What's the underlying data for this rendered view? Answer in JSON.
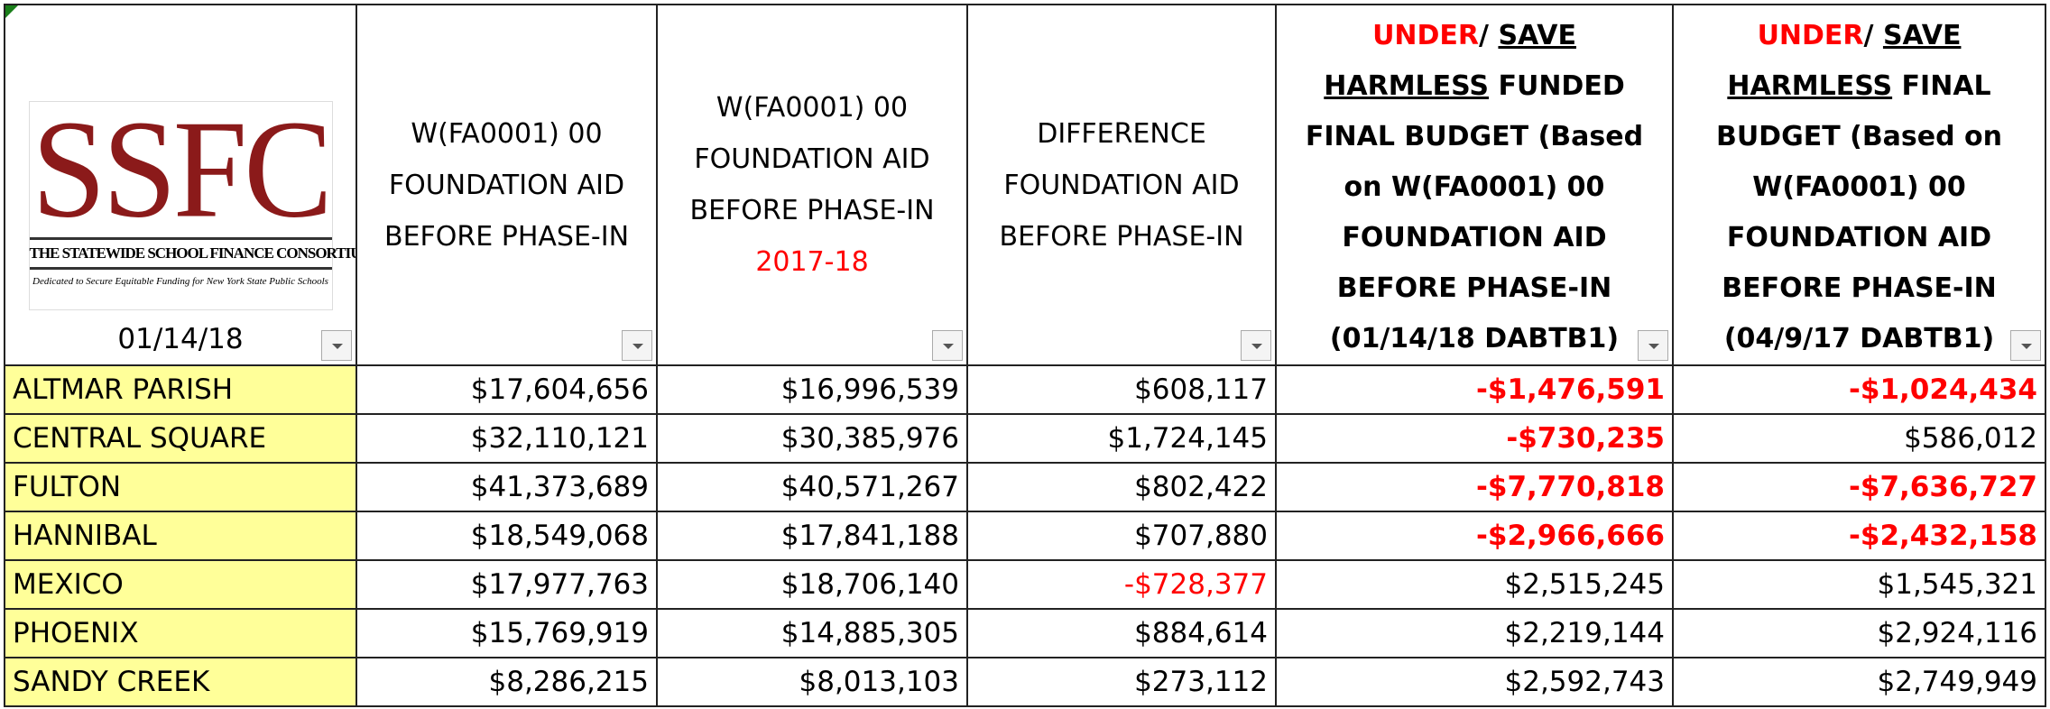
{
  "logo": {
    "initials": "SSFC",
    "name": "THE STATEWIDE SCHOOL FINANCE CONSORTIUM",
    "tagline": "Dedicated to Secure Equitable Funding for New York State Public Schools"
  },
  "header": {
    "date": "01/14/18",
    "columns": [
      [
        {
          "text": "W(FA0001) 00 FOUNDATION AID BEFORE PHASE-IN"
        }
      ],
      [
        {
          "text": "W(FA0001) 00 FOUNDATION AID BEFORE PHASE-IN"
        },
        {
          "text": "2017-18",
          "color": "#ff0000",
          "block": true
        }
      ],
      [
        {
          "text": "DIFFERENCE FOUNDATION AID BEFORE PHASE-IN"
        }
      ],
      [
        {
          "text": "UNDER",
          "color": "#ff0000"
        },
        {
          "text": "/ "
        },
        {
          "text": "SAVE",
          "underline": true
        },
        {
          "text": " "
        },
        {
          "text": "HARMLESS",
          "underline": true
        },
        {
          "text": " FUNDED FINAL BUDGET (Based on W(FA0001) 00 FOUNDATION AID BEFORE PHASE-IN (01/14/18 DABTB1)"
        }
      ],
      [
        {
          "text": "UNDER",
          "color": "#ff0000"
        },
        {
          "text": "/ "
        },
        {
          "text": "SAVE",
          "underline": true
        },
        {
          "text": " "
        },
        {
          "text": "HARMLESS",
          "underline": true
        },
        {
          "text": " FINAL BUDGET (Based on W(FA0001) 00 FOUNDATION AID BEFORE PHASE-IN (04/9/17 DABTB1)"
        }
      ]
    ],
    "bold_columns": [
      3,
      4
    ]
  },
  "rows": [
    {
      "name": "ALTMAR PARISH",
      "cells": [
        "$17,604,656",
        "$16,996,539",
        "$608,117",
        {
          "text": "-$1,476,591",
          "color": "#ff0000",
          "bold": true
        },
        {
          "text": "-$1,024,434",
          "color": "#ff0000",
          "bold": true
        }
      ]
    },
    {
      "name": "CENTRAL SQUARE",
      "cells": [
        "$32,110,121",
        "$30,385,976",
        "$1,724,145",
        {
          "text": "-$730,235",
          "color": "#ff0000",
          "bold": true
        },
        "$586,012"
      ]
    },
    {
      "name": "FULTON",
      "cells": [
        "$41,373,689",
        "$40,571,267",
        "$802,422",
        {
          "text": "-$7,770,818",
          "color": "#ff0000",
          "bold": true
        },
        {
          "text": "-$7,636,727",
          "color": "#ff0000",
          "bold": true
        }
      ]
    },
    {
      "name": "HANNIBAL",
      "cells": [
        "$18,549,068",
        "$17,841,188",
        "$707,880",
        {
          "text": "-$2,966,666",
          "color": "#ff0000",
          "bold": true
        },
        {
          "text": "-$2,432,158",
          "color": "#ff0000",
          "bold": true
        }
      ]
    },
    {
      "name": "MEXICO",
      "cells": [
        "$17,977,763",
        "$18,706,140",
        {
          "text": "-$728,377",
          "color": "#ff0000"
        },
        "$2,515,245",
        "$1,545,321"
      ]
    },
    {
      "name": "PHOENIX",
      "cells": [
        "$15,769,919",
        "$14,885,305",
        "$884,614",
        "$2,219,144",
        "$2,924,116"
      ]
    },
    {
      "name": "SANDY CREEK",
      "cells": [
        "$8,286,215",
        "$8,013,103",
        "$273,112",
        "$2,592,743",
        "$2,749,949"
      ]
    }
  ]
}
